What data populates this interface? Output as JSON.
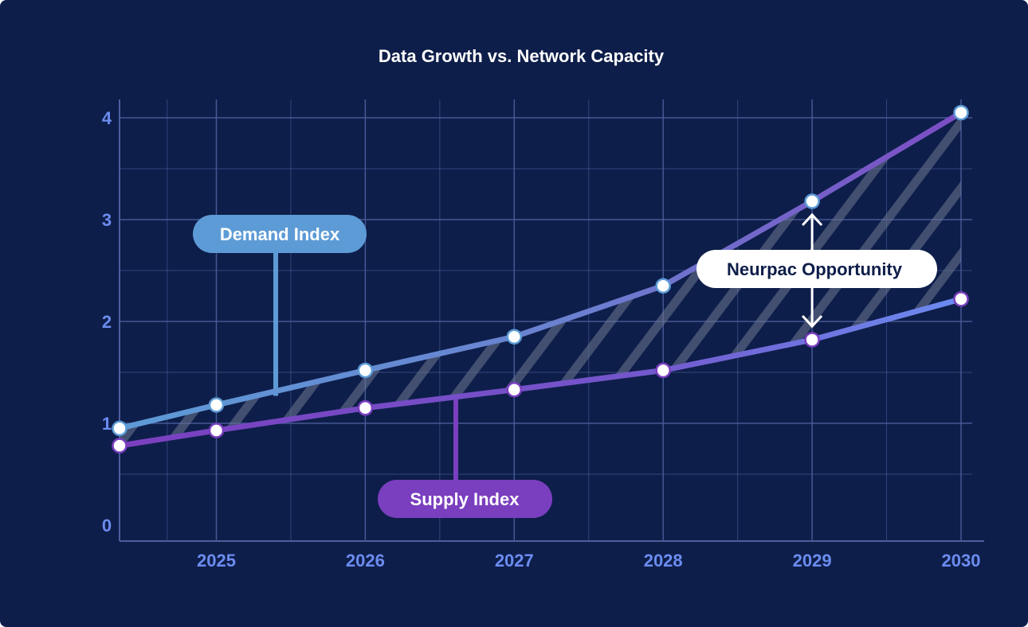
{
  "chart_data": {
    "type": "line",
    "title": "Data Growth vs. Network Capacity",
    "xlabel": "",
    "ylabel": "",
    "x": [
      2024.35,
      2025,
      2026,
      2027,
      2028,
      2029,
      2030
    ],
    "x_ticks": [
      "2025",
      "2026",
      "2027",
      "2028",
      "2029",
      "2030"
    ],
    "y_ticks": [
      "0",
      "1",
      "2",
      "3",
      "4"
    ],
    "xlim": [
      2024.35,
      2030.15
    ],
    "ylim": [
      0,
      4.2
    ],
    "grid": true,
    "series": [
      {
        "name": "Demand Index",
        "values": [
          0.95,
          1.18,
          1.52,
          1.85,
          2.35,
          3.18,
          4.05
        ],
        "color": "#5d9bd6",
        "end_color": "#7c4cc4",
        "marker_ring": "#5d9bd6"
      },
      {
        "name": "Supply Index",
        "values": [
          0.78,
          0.93,
          1.15,
          1.33,
          1.52,
          1.82,
          2.22
        ],
        "color": "#7a3fbf",
        "end_color": "#6b8cf0",
        "marker_ring": "#7a3fbf"
      }
    ],
    "annotations": [
      {
        "name": "gap-label",
        "text": "Neurpac Opportunity",
        "x": 2029
      }
    ]
  },
  "colors": {
    "background": "#0e1e4a",
    "grid": "#4a5f9e",
    "tick_label": "#6b8cf0",
    "hatch": "#6d7791",
    "demand_pill": "#5d9bd6",
    "supply_pill": "#7a3fbf",
    "annotation_pill": "#ffffff",
    "annotation_text": "#0e1e4a"
  }
}
